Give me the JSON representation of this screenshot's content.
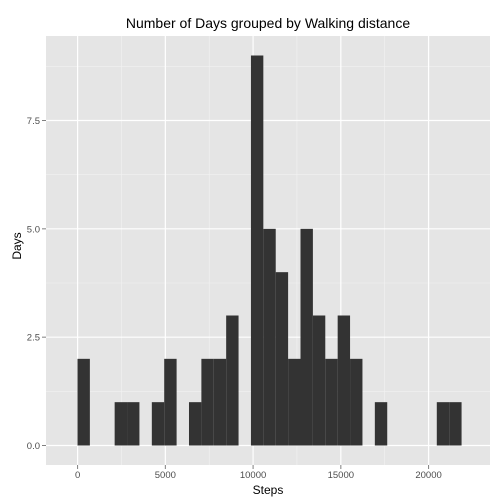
{
  "chart_data": {
    "type": "bar",
    "title": "Number of Days grouped by Walking distance",
    "xlabel": "Steps",
    "ylabel": "Days",
    "xlim": [
      -1800,
      23500
    ],
    "ylim": [
      -0.45,
      9.45
    ],
    "x_ticks": [
      0,
      5000,
      10000,
      15000,
      20000
    ],
    "x_tick_labels": [
      "0",
      "5000",
      "10000",
      "15000",
      "20000"
    ],
    "y_ticks": [
      0,
      2.5,
      5,
      7.5
    ],
    "y_tick_labels": [
      "0.0",
      "2.5",
      "5.0",
      "7.5"
    ],
    "bin_width": 706,
    "bins": [
      {
        "x0": -6,
        "x1": 700,
        "count": 2
      },
      {
        "x0": 700,
        "x1": 1406,
        "count": 0
      },
      {
        "x0": 1406,
        "x1": 2112,
        "count": 0
      },
      {
        "x0": 2112,
        "x1": 2818,
        "count": 1
      },
      {
        "x0": 2818,
        "x1": 3524,
        "count": 1
      },
      {
        "x0": 3524,
        "x1": 4230,
        "count": 0
      },
      {
        "x0": 4230,
        "x1": 4936,
        "count": 1
      },
      {
        "x0": 4936,
        "x1": 5642,
        "count": 2
      },
      {
        "x0": 5642,
        "x1": 6348,
        "count": 0
      },
      {
        "x0": 6348,
        "x1": 7054,
        "count": 1
      },
      {
        "x0": 7054,
        "x1": 7760,
        "count": 2
      },
      {
        "x0": 7760,
        "x1": 8466,
        "count": 2
      },
      {
        "x0": 8466,
        "x1": 9172,
        "count": 3
      },
      {
        "x0": 9172,
        "x1": 9878,
        "count": 0
      },
      {
        "x0": 9878,
        "x1": 10584,
        "count": 9
      },
      {
        "x0": 10584,
        "x1": 11290,
        "count": 5
      },
      {
        "x0": 11290,
        "x1": 11996,
        "count": 4
      },
      {
        "x0": 11996,
        "x1": 12702,
        "count": 2
      },
      {
        "x0": 12702,
        "x1": 13408,
        "count": 5
      },
      {
        "x0": 13408,
        "x1": 14114,
        "count": 3
      },
      {
        "x0": 14114,
        "x1": 14820,
        "count": 2
      },
      {
        "x0": 14820,
        "x1": 15526,
        "count": 3
      },
      {
        "x0": 15526,
        "x1": 16232,
        "count": 2
      },
      {
        "x0": 16232,
        "x1": 16938,
        "count": 0
      },
      {
        "x0": 16938,
        "x1": 17644,
        "count": 1
      },
      {
        "x0": 17644,
        "x1": 18350,
        "count": 0
      },
      {
        "x0": 18350,
        "x1": 19056,
        "count": 0
      },
      {
        "x0": 19056,
        "x1": 19762,
        "count": 0
      },
      {
        "x0": 19762,
        "x1": 20468,
        "count": 0
      },
      {
        "x0": 20468,
        "x1": 21174,
        "count": 1
      },
      {
        "x0": 21174,
        "x1": 21880,
        "count": 1
      }
    ],
    "grid": true,
    "colors": {
      "panel_background": "#e5e5e5",
      "grid_major": "#ffffff",
      "grid_minor": "#f2f2f2",
      "bar_fill": "#333333",
      "tick_label": "#4d4d4d",
      "tick_mark": "#7f7f7f"
    }
  }
}
